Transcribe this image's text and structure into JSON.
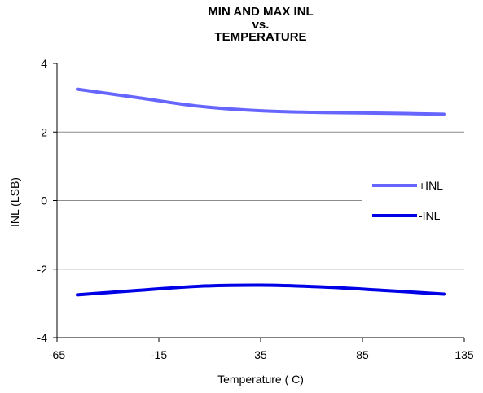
{
  "chart_data": {
    "type": "line",
    "title_lines": [
      "MIN AND MAX INL",
      "vs.",
      "TEMPERATURE"
    ],
    "xlabel": "Temperature ( C)",
    "ylabel": "INL (LSB)",
    "xlim": [
      -65,
      135
    ],
    "ylim": [
      -4,
      4
    ],
    "xticks": [
      -65,
      -15,
      35,
      85,
      135
    ],
    "yticks": [
      4,
      2,
      0,
      -2,
      -4
    ],
    "grid": "horizontal",
    "legend_position": "right",
    "series": [
      {
        "name": "+INL",
        "color": "#6666ff",
        "x": [
          -55,
          -25,
          5,
          35,
          65,
          95,
          125
        ],
        "y": [
          3.25,
          3.0,
          2.75,
          2.62,
          2.57,
          2.55,
          2.52
        ]
      },
      {
        "name": "-INL",
        "color": "#0000e6",
        "x": [
          -55,
          -25,
          5,
          35,
          65,
          95,
          125
        ],
        "y": [
          -2.75,
          -2.62,
          -2.5,
          -2.47,
          -2.52,
          -2.62,
          -2.73
        ]
      }
    ]
  }
}
